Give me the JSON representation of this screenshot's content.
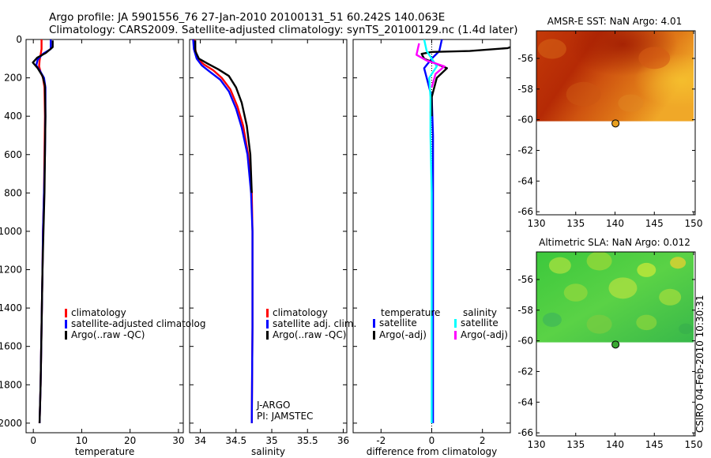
{
  "header": {
    "title_line1": "Argo profile: JA 5901556_76 27-Jan-2010 20100131_51 60.242S 140.063E",
    "title_line2": "Climatology: CARS2009. Satellite-adjusted climatology: synTS_20100129.nc (1.4d later)"
  },
  "credit": "CSIRO 04-Feb-2010 10:30:31",
  "colors": {
    "climatology": "#ff0000",
    "satellite": "#0000ff",
    "argo": "#000000",
    "satellite_salinity": "#00ffff",
    "argo_salinity_adj": "#ff00ff",
    "float_marker_sst": "#e8a020",
    "float_marker_sla": "#3aa832"
  },
  "chart_data": [
    {
      "id": "temperature",
      "type": "line",
      "xlabel": "temperature",
      "ylabel": "",
      "xlim": [
        -1.5,
        31
      ],
      "ylim": [
        2050,
        0
      ],
      "xticks": [
        0,
        10,
        20,
        30
      ],
      "yticks": [
        0,
        200,
        400,
        600,
        800,
        1000,
        1200,
        1400,
        1600,
        1800,
        2000
      ],
      "legend": [
        "climatology",
        "satellite-adjusted climatolog",
        "Argo(..raw -QC)"
      ],
      "legend_colors": [
        "#ff0000",
        "#0000ff",
        "#000000"
      ],
      "series": [
        {
          "name": "climatology",
          "color": "#ff0000",
          "x": [
            1.7,
            1.7,
            1.5,
            1.3,
            1.2,
            1.5,
            2.0,
            2.3,
            2.4,
            2.3,
            2.2,
            2.0,
            1.9,
            1.7,
            1.5,
            1.3
          ],
          "y": [
            0,
            50,
            80,
            110,
            140,
            170,
            200,
            250,
            400,
            600,
            800,
            1000,
            1200,
            1500,
            1800,
            2000
          ]
        },
        {
          "name": "satellite",
          "color": "#0000ff",
          "x": [
            3.6,
            3.6,
            2.0,
            0.9,
            0.6,
            1.4,
            2.2,
            2.5,
            2.5,
            2.4,
            2.2,
            2.0,
            1.9,
            1.7,
            1.5,
            1.3
          ],
          "y": [
            0,
            50,
            75,
            105,
            135,
            165,
            200,
            250,
            400,
            600,
            800,
            1000,
            1200,
            1500,
            1800,
            2000
          ]
        },
        {
          "name": "argo",
          "color": "#000000",
          "x": [
            4.0,
            4.0,
            2.6,
            0.8,
            -0.1,
            0.9,
            1.9,
            2.4,
            2.5,
            2.4,
            2.3,
            2.1,
            1.9,
            1.7,
            1.5,
            1.3
          ],
          "y": [
            5,
            40,
            70,
            95,
            120,
            150,
            190,
            240,
            400,
            600,
            800,
            1000,
            1200,
            1500,
            1800,
            2000
          ]
        }
      ]
    },
    {
      "id": "salinity",
      "type": "line",
      "xlabel": "salinity",
      "xlim": [
        33.85,
        36.05
      ],
      "ylim": [
        2050,
        0
      ],
      "xticks": [
        34,
        34.5,
        35,
        35.5,
        36
      ],
      "xtick_labels": [
        "34",
        "34.5",
        "35",
        "35.5",
        "36"
      ],
      "legend": [
        "climatology",
        "satellite adj. clim.",
        "Argo(..raw -QC)"
      ],
      "legend_colors": [
        "#ff0000",
        "#0000ff",
        "#000000"
      ],
      "annotations": [
        "J-ARGO",
        "PI: JAMSTEC"
      ],
      "series": [
        {
          "name": "climatology",
          "color": "#ff0000",
          "x": [
            33.92,
            33.93,
            33.96,
            34.05,
            34.18,
            34.3,
            34.42,
            34.52,
            34.6,
            34.67,
            34.72,
            34.73,
            34.73,
            34.72
          ],
          "y": [
            0,
            50,
            100,
            130,
            160,
            200,
            260,
            350,
            450,
            600,
            800,
            1000,
            1500,
            2000
          ]
        },
        {
          "name": "satellite",
          "color": "#0000ff",
          "x": [
            33.9,
            33.91,
            33.95,
            34.02,
            34.14,
            34.28,
            34.4,
            34.5,
            34.58,
            34.66,
            34.71,
            34.73,
            34.73,
            34.72
          ],
          "y": [
            0,
            50,
            100,
            135,
            170,
            210,
            270,
            360,
            460,
            600,
            800,
            1000,
            1500,
            2000
          ]
        },
        {
          "name": "argo",
          "color": "#000000",
          "x": [
            33.93,
            33.93,
            33.98,
            34.1,
            34.25,
            34.4,
            34.5,
            34.58,
            34.65,
            34.7,
            34.72
          ],
          "y": [
            5,
            60,
            100,
            125,
            155,
            190,
            250,
            330,
            450,
            600,
            800
          ]
        }
      ]
    },
    {
      "id": "difference",
      "type": "line",
      "xlabel": "difference from climatology",
      "xlim": [
        -3.1,
        3.1
      ],
      "ylim": [
        2050,
        0
      ],
      "xticks": [
        -2,
        0,
        2
      ],
      "legend_headers": [
        "temperature",
        "salinity"
      ],
      "legend": [
        "satellite",
        "Argo(-adj)",
        "satellite",
        "Argo(-adj)"
      ],
      "legend_colors": [
        "#0000ff",
        "#000000",
        "#00ffff",
        "#ff00ff"
      ],
      "series": [
        {
          "name": "temperature satellite",
          "color": "#0000ff",
          "x": [
            0.4,
            0.3,
            0.0,
            -0.3,
            -0.2,
            0.0,
            0.05,
            0.05,
            0.05,
            0.05
          ],
          "y": [
            0,
            60,
            100,
            150,
            200,
            300,
            500,
            1000,
            1500,
            2000
          ]
        },
        {
          "name": "temperature argo",
          "color": "#000000",
          "x": [
            3.1,
            3.0,
            1.5,
            0.0,
            -0.4,
            -0.3,
            0.6,
            0.2,
            0.0,
            0.0
          ],
          "y": [
            40,
            45,
            60,
            65,
            75,
            100,
            150,
            200,
            300,
            400
          ]
        },
        {
          "name": "salinity satellite",
          "color": "#00ffff",
          "x": [
            -0.3,
            -0.2,
            0.0,
            0.2,
            -0.1,
            -0.05,
            -0.05,
            0.0,
            0.0,
            0.0
          ],
          "y": [
            0,
            60,
            100,
            140,
            200,
            300,
            500,
            800,
            1500,
            2000
          ]
        },
        {
          "name": "salinity argo",
          "color": "#ff00ff",
          "x": [
            -0.5,
            -0.6,
            -0.2,
            0.5,
            0.15,
            0.0
          ],
          "y": [
            20,
            80,
            110,
            140,
            180,
            250
          ]
        }
      ]
    },
    {
      "id": "amsre-sst",
      "type": "heatmap",
      "title": "AMSR-E SST: NaN Argo: 4.01",
      "xlim": [
        130,
        150.2
      ],
      "ylim": [
        -66.2,
        -54.2
      ],
      "xticks": [
        130,
        135,
        140,
        145,
        150
      ],
      "yticks": [
        -56,
        -58,
        -60,
        -62,
        -64,
        -66
      ],
      "float_position": [
        140.063,
        -60.242
      ],
      "data_extent": {
        "lon": [
          130,
          150
        ],
        "lat": [
          -60.1,
          -54.2
        ]
      }
    },
    {
      "id": "altimetric-sla",
      "type": "heatmap",
      "title": "Altimetric SLA: NaN Argo: 0.012",
      "xlim": [
        130,
        150.2
      ],
      "ylim": [
        -66.2,
        -54.2
      ],
      "xticks": [
        130,
        135,
        140,
        145,
        150
      ],
      "yticks": [
        -56,
        -58,
        -60,
        -62,
        -64,
        -66
      ],
      "float_position": [
        140.063,
        -60.242
      ],
      "data_extent": {
        "lon": [
          130,
          150
        ],
        "lat": [
          -60.1,
          -54.2
        ]
      }
    }
  ]
}
